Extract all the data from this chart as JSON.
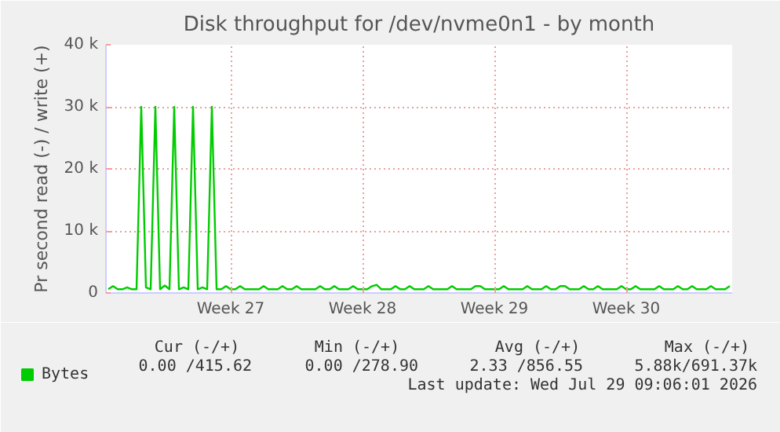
{
  "chart_data": {
    "type": "line",
    "title": "Disk throughput for /dev/nvme0n1 - by month",
    "ylabel": "Pr second read (-) / write (+)",
    "categories": [
      null,
      null,
      null,
      null,
      null,
      null,
      null,
      null,
      null,
      null,
      null,
      null,
      null,
      null,
      null,
      null,
      null,
      null,
      null,
      null,
      null,
      null,
      null,
      null,
      null,
      null,
      "Week 27",
      null,
      null,
      null,
      null,
      null,
      null,
      null,
      null,
      null,
      null,
      null,
      null,
      null,
      null,
      null,
      null,
      null,
      null,
      null,
      null,
      null,
      null,
      null,
      null,
      null,
      null,
      null,
      "Week 28",
      null,
      null,
      null,
      null,
      null,
      null,
      null,
      null,
      null,
      null,
      null,
      null,
      null,
      null,
      null,
      null,
      null,
      null,
      null,
      null,
      null,
      null,
      null,
      null,
      null,
      null,
      null,
      "Week 29",
      null,
      null,
      null,
      null,
      null,
      null,
      null,
      null,
      null,
      null,
      null,
      null,
      null,
      null,
      null,
      null,
      null,
      null,
      null,
      null,
      null,
      null,
      null,
      null,
      null,
      null,
      null,
      "Week 30",
      null,
      null,
      null,
      null,
      null,
      null,
      null,
      null,
      null,
      null,
      null,
      null,
      null,
      null,
      null,
      null,
      null,
      null,
      null,
      null,
      null,
      null
    ],
    "ylim": [
      0,
      40000
    ],
    "yticks": [
      {
        "value": 0,
        "label": "0"
      },
      {
        "value": 10000,
        "label": "10 k"
      },
      {
        "value": 20000,
        "label": "20 k"
      },
      {
        "value": 30000,
        "label": "30 k"
      },
      {
        "value": 40000,
        "label": "40 k"
      }
    ],
    "grid": true,
    "legend": "bottom",
    "series": [
      {
        "name": "Bytes",
        "color": "#00cc00",
        "values": [
          600,
          1100,
          600,
          600,
          900,
          600,
          600,
          30000,
          900,
          600,
          30000,
          600,
          1200,
          600,
          30000,
          600,
          900,
          600,
          30000,
          600,
          900,
          600,
          30000,
          600,
          600,
          1100,
          600,
          600,
          1100,
          600,
          600,
          600,
          600,
          1100,
          600,
          600,
          600,
          1100,
          600,
          600,
          1100,
          600,
          600,
          600,
          600,
          1100,
          600,
          600,
          1100,
          600,
          600,
          600,
          1100,
          600,
          600,
          600,
          1100,
          1300,
          600,
          600,
          600,
          1100,
          600,
          600,
          1100,
          600,
          600,
          600,
          1100,
          600,
          600,
          600,
          600,
          1100,
          600,
          600,
          600,
          600,
          1100,
          1100,
          600,
          600,
          600,
          600,
          1100,
          600,
          600,
          600,
          600,
          1100,
          600,
          600,
          600,
          1100,
          600,
          600,
          1100,
          1100,
          600,
          600,
          600,
          1100,
          600,
          600,
          1100,
          600,
          600,
          600,
          600,
          1100,
          600,
          600,
          1100,
          600,
          600,
          600,
          600,
          1100,
          600,
          600,
          600,
          1100,
          600,
          600,
          1100,
          600,
          600,
          600,
          1100,
          600,
          600,
          600,
          1100
        ]
      }
    ],
    "annotations": [
      "Cur (-/+)",
      "Min (-/+)",
      "Avg (-/+)",
      "Max (-/+)",
      "0.00 /415.62",
      "0.00 /278.90",
      "2.33 /856.55",
      "5.88k/691.37k",
      "Last update: Wed Jul 29 09:06:01 2026"
    ]
  }
}
